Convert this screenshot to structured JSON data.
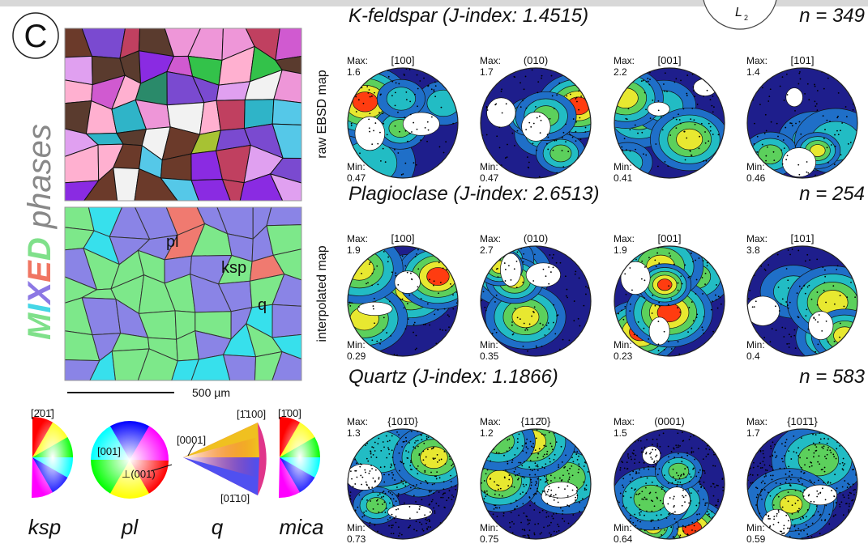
{
  "panel_label": "C",
  "side_title": {
    "letters": [
      "M",
      "I",
      "X",
      "E",
      "D"
    ],
    "rest": "phases"
  },
  "map_labels": [
    "raw EBSD map",
    "interpolated map"
  ],
  "phase_labels": [
    "pl",
    "ksp",
    "q"
  ],
  "scale_bar": "500 µm",
  "keys": [
    {
      "name": "ksp",
      "axes": [
        "[2̄01̄]"
      ]
    },
    {
      "name": "pl",
      "axes": [
        "[001]",
        "⊥(001)"
      ]
    },
    {
      "name": "q",
      "axes": [
        "[0001]",
        "[1̄100]",
        "[01̄10]"
      ]
    },
    {
      "name": "mica",
      "axes": [
        "[1̄00]"
      ]
    }
  ],
  "reference_axis": {
    "main": "L",
    "sub": "2"
  },
  "max_label": "Max:",
  "min_label": "Min:",
  "phases": [
    {
      "title": "K-feldspar (J-index: 1.4515)",
      "n": "n = 349",
      "figures": [
        {
          "label": "[100]",
          "max": 1.6,
          "min": 0.47
        },
        {
          "label": "(010)",
          "max": 1.7,
          "min": 0.47
        },
        {
          "label": "[001]",
          "max": 2.2,
          "min": 0.41
        },
        {
          "label": "[101]",
          "max": 1.4,
          "min": 0.46
        }
      ]
    },
    {
      "title": "Plagioclase (J-index: 2.6513)",
      "n": "n = 254",
      "figures": [
        {
          "label": "[100]",
          "max": 1.9,
          "min": 0.29
        },
        {
          "label": "(010)",
          "max": 2.7,
          "min": 0.35
        },
        {
          "label": "[001]",
          "max": 1.9,
          "min": 0.23
        },
        {
          "label": "[101]",
          "max": 3.8,
          "min": 0.4
        }
      ]
    },
    {
      "title": "Quartz (J-index: 1.1866)",
      "n": "n = 583",
      "figures": [
        {
          "label": "{101̄0}",
          "max": 1.3,
          "min": 0.73
        },
        {
          "label": "{112̄0}",
          "max": 1.2,
          "min": 0.75
        },
        {
          "label": "(0001)",
          "max": 1.5,
          "min": 0.64
        },
        {
          "label": "{101̄1}",
          "max": 1.7,
          "min": 0.59
        }
      ]
    }
  ]
}
